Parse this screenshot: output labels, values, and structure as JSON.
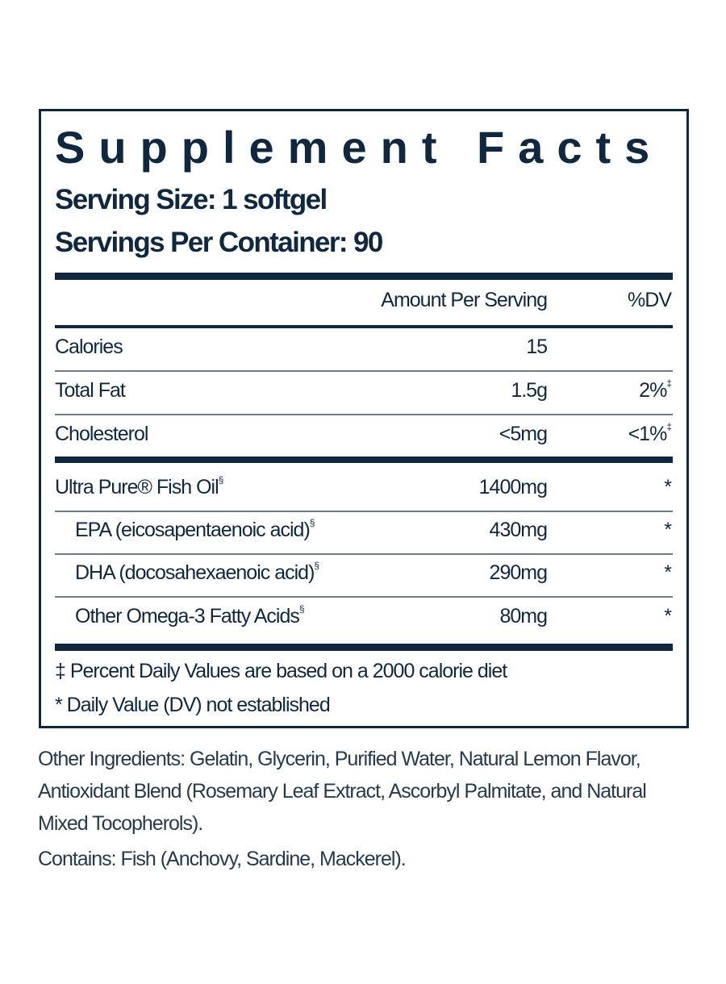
{
  "title": "Supplement Facts",
  "serving_size": "Serving Size: 1 softgel",
  "servings_per_container": "Servings Per Container: 90",
  "header": {
    "amount": "Amount Per Serving",
    "dv": "%DV"
  },
  "rows": [
    {
      "name": "Calories",
      "sup": "",
      "amount": "15",
      "dv": "",
      "dv_sup": ""
    },
    {
      "name": "Total Fat",
      "sup": "",
      "amount": "1.5g",
      "dv": "2%",
      "dv_sup": "‡"
    },
    {
      "name": "Cholesterol",
      "sup": "",
      "amount": "<5mg",
      "dv": "<1%",
      "dv_sup": "‡"
    },
    {
      "name": "Ultra Pure® Fish Oil",
      "sup": "§",
      "amount": "1400mg",
      "dv": "*",
      "dv_sup": ""
    },
    {
      "name": "EPA (eicosapentaenoic acid)",
      "sup": "§",
      "amount": "430mg",
      "dv": "*",
      "dv_sup": ""
    },
    {
      "name": "DHA (docosahexaenoic acid)",
      "sup": "§",
      "amount": "290mg",
      "dv": "*",
      "dv_sup": ""
    },
    {
      "name": "Other Omega-3 Fatty Acids",
      "sup": "§",
      "amount": "80mg",
      "dv": "*",
      "dv_sup": ""
    }
  ],
  "footnotes": [
    "‡ Percent Daily Values are based on a 2000 calorie diet",
    "* Daily Value (DV) not established"
  ],
  "other_ingredients": [
    "Other Ingredients: Gelatin, Glycerin, Purified Water, Natural Lemon Flavor,",
    "Antioxidant Blend (Rosemary Leaf Extract, Ascorbyl Palmitate, and Natural",
    "Mixed Tocopherols)."
  ],
  "contains": "Contains: Fish (Anchovy, Sardine, Mackerel)."
}
